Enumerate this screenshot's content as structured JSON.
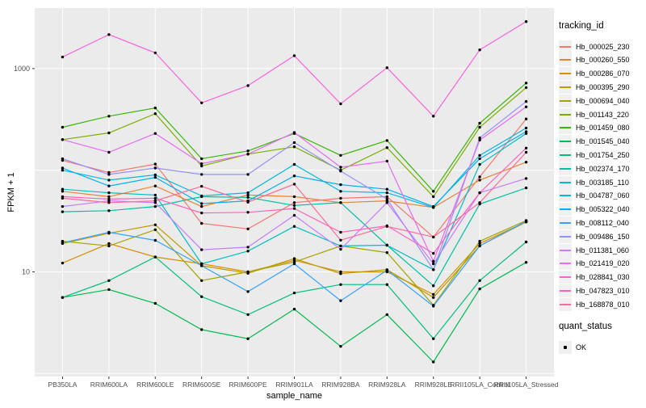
{
  "chart_data": {
    "type": "line",
    "title": "",
    "xlabel": "sample_name",
    "ylabel": "FPKM + 1",
    "x_type": "categorical",
    "y_scale": "log10",
    "ylim": [
      1,
      3900
    ],
    "y_labeled_breaks": [
      1000,
      10
    ],
    "y_gridlines": [
      1,
      10,
      100,
      1000
    ],
    "grid": true,
    "legend_position": "right",
    "legend_title": "tracking_id",
    "panel_bg": "#EBEBEB",
    "gridline_color": "#FFFFFF",
    "tick_label_color": "#4D4D4D",
    "point_color": "#000000",
    "categories": [
      "PB350LA",
      "RRIM600LA",
      "RRIM600LE",
      "RRIM600SE",
      "RRIM600PE",
      "RRIM901LA",
      "RRIM928BA",
      "RRIM928LA",
      "RRIM928LE",
      "RRII105LA_Control",
      "RRII105LA_Stressed"
    ],
    "series": [
      {
        "name": "Hb_000025_230",
        "color": "#F8766D",
        "values": [
          125,
          95,
          115,
          30,
          26.5,
          48,
          53,
          55,
          22,
          86,
          320
        ]
      },
      {
        "name": "Hb_000260_550",
        "color": "#EA8331",
        "values": [
          62,
          55,
          70,
          44,
          57,
          55,
          48,
          50,
          43,
          80,
          120
        ]
      },
      {
        "name": "Hb_000286_070",
        "color": "#D89000",
        "values": [
          12.2,
          19,
          14,
          12,
          10,
          13,
          10,
          10,
          6,
          19,
          31
        ]
      },
      {
        "name": "Hb_000395_290",
        "color": "#C09B00",
        "values": [
          19,
          24,
          29,
          11.5,
          9.7,
          13.5,
          9.6,
          10.5,
          5.6,
          18,
          31
        ]
      },
      {
        "name": "Hb_000694_040",
        "color": "#A3A500",
        "values": [
          20,
          18,
          26,
          8.2,
          10,
          12.5,
          18,
          15.5,
          4.7,
          20,
          32
        ]
      },
      {
        "name": "Hb_001143_220",
        "color": "#7CAE00",
        "values": [
          200,
          233,
          360,
          110,
          144,
          170,
          100,
          167,
          55,
          265,
          650
        ]
      },
      {
        "name": "Hb_001459_080",
        "color": "#39B600",
        "values": [
          265,
          340,
          410,
          130,
          155,
          230,
          140,
          196,
          62,
          290,
          720
        ]
      },
      {
        "name": "Hb_001545_040",
        "color": "#00BB4E",
        "values": [
          5.6,
          6.7,
          4.9,
          2.7,
          2.2,
          4.3,
          1.85,
          3.8,
          1.3,
          6.8,
          12.4
        ]
      },
      {
        "name": "Hb_001754_250",
        "color": "#00BF7D",
        "values": [
          5.6,
          8.2,
          14,
          5.7,
          3.8,
          6.2,
          7.5,
          7.5,
          2.2,
          8.2,
          19.7
        ]
      },
      {
        "name": "Hb_002374_170",
        "color": "#00C1A3",
        "values": [
          39,
          40,
          44,
          55,
          54,
          45,
          48,
          18.3,
          7.3,
          46.5,
          67
        ]
      },
      {
        "name": "Hb_003185_110",
        "color": "#00BFC4",
        "values": [
          65,
          60,
          57,
          12,
          16,
          28,
          18,
          18.3,
          10.5,
          114,
          230
        ]
      },
      {
        "name": "Hb_004787_060",
        "color": "#00BAE0",
        "values": [
          100,
          80,
          90,
          56,
          60,
          114,
          62,
          60,
          43,
          140,
          260
        ]
      },
      {
        "name": "Hb_005322_040",
        "color": "#00B0F6",
        "values": [
          105,
          70,
          85,
          47,
          50,
          88,
          72,
          65,
          44,
          130,
          240
        ]
      },
      {
        "name": "Hb_008112_040",
        "color": "#35A2FF",
        "values": [
          19.3,
          24.5,
          20.4,
          11.5,
          6.4,
          12,
          5.2,
          10.4,
          4.6,
          18,
          31.5
        ]
      },
      {
        "name": "Hb_009486_150",
        "color": "#9590FF",
        "values": [
          130,
          91,
          105,
          91,
          91,
          187,
          98,
          52,
          10.5,
          208,
          475
        ]
      },
      {
        "name": "Hb_011381_060",
        "color": "#C77CFF",
        "values": [
          44,
          50,
          48,
          16.5,
          17.5,
          36,
          16.7,
          48,
          12,
          60,
          83
        ]
      },
      {
        "name": "Hb_021419_020",
        "color": "#E76BF3",
        "values": [
          200,
          150,
          230,
          116,
          144,
          235,
          107,
          123,
          12.7,
          198,
          420
        ]
      },
      {
        "name": "Hb_028841_030",
        "color": "#FA62DB",
        "values": [
          1300,
          2160,
          1430,
          460,
          680,
          1340,
          450,
          1020,
          340,
          1530,
          2900
        ]
      },
      {
        "name": "Hb_047823_010",
        "color": "#FF62BC",
        "values": [
          55,
          52,
          53,
          38,
          38.5,
          42,
          24.5,
          28.4,
          15.2,
          60,
          165
        ]
      },
      {
        "name": "Hb_168878_010",
        "color": "#FF6A98",
        "values": [
          53,
          48,
          50,
          69.5,
          48.5,
          73,
          20.5,
          28,
          22,
          48,
          150
        ]
      }
    ],
    "quant_status": {
      "title": "quant_status",
      "items": [
        {
          "label": "OK",
          "marker": "point",
          "color": "#000000"
        }
      ]
    }
  }
}
